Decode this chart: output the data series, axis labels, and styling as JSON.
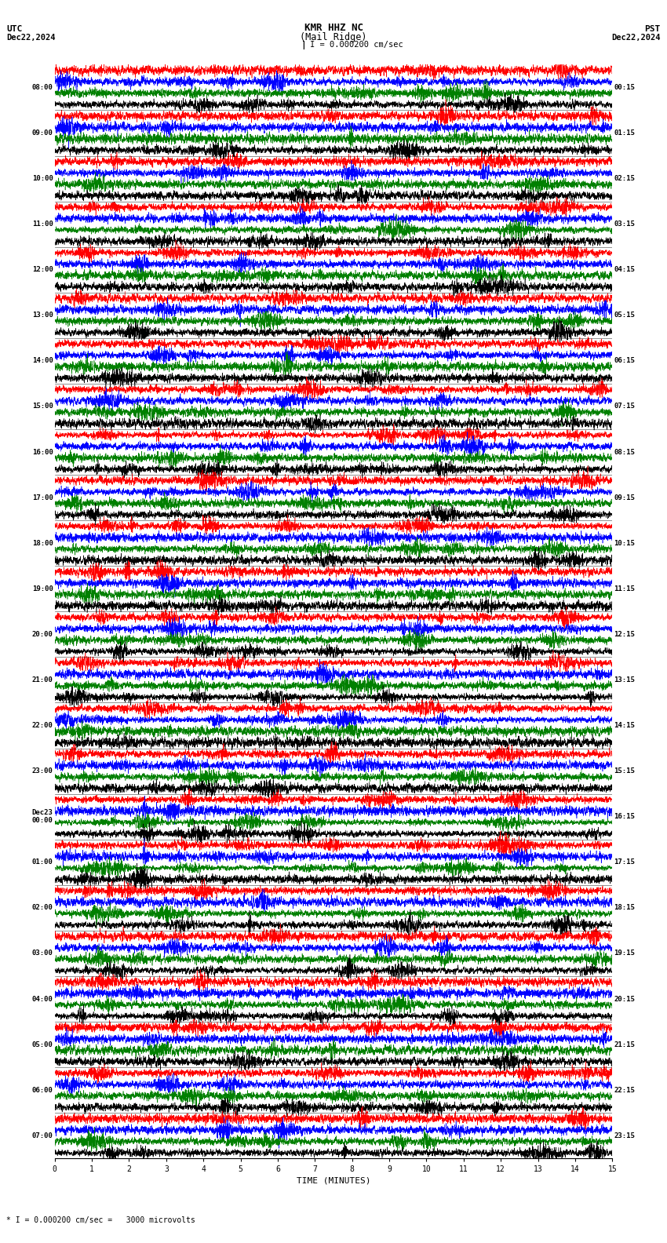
{
  "title_line1": "KMR HHZ NC",
  "title_line2": "(Mail Ridge)",
  "scale_label": "I = 0.000200 cm/sec",
  "left_header_line1": "UTC",
  "left_header_line2": "Dec22,2024",
  "right_header_line1": "PST",
  "right_header_line2": "Dec22,2024",
  "bottom_label": "TIME (MINUTES)",
  "bottom_note": "* I = 0.000200 cm/sec =   3000 microvolts",
  "utc_labels": [
    "08:00",
    "09:00",
    "10:00",
    "11:00",
    "12:00",
    "13:00",
    "14:00",
    "15:00",
    "16:00",
    "17:00",
    "18:00",
    "19:00",
    "20:00",
    "21:00",
    "22:00",
    "23:00",
    "Dec23\n00:00",
    "01:00",
    "02:00",
    "03:00",
    "04:00",
    "05:00",
    "06:00",
    "07:00"
  ],
  "pst_labels": [
    "00:15",
    "01:15",
    "02:15",
    "03:15",
    "04:15",
    "05:15",
    "06:15",
    "07:15",
    "08:15",
    "09:15",
    "10:15",
    "11:15",
    "12:15",
    "13:15",
    "14:15",
    "15:15",
    "16:15",
    "17:15",
    "18:15",
    "19:15",
    "20:15",
    "21:15",
    "22:15",
    "23:15"
  ],
  "n_rows": 24,
  "n_minutes": 15,
  "background_color": "#ffffff",
  "colors": [
    "#ff0000",
    "#0000ff",
    "#008000",
    "#000000"
  ],
  "fig_width": 8.5,
  "fig_height": 15.84,
  "dpi": 100,
  "n_sub_traces": 4,
  "sub_trace_colors": [
    "#ff0000",
    "#0000ff",
    "#008000",
    "#000000"
  ],
  "lw": 0.4
}
